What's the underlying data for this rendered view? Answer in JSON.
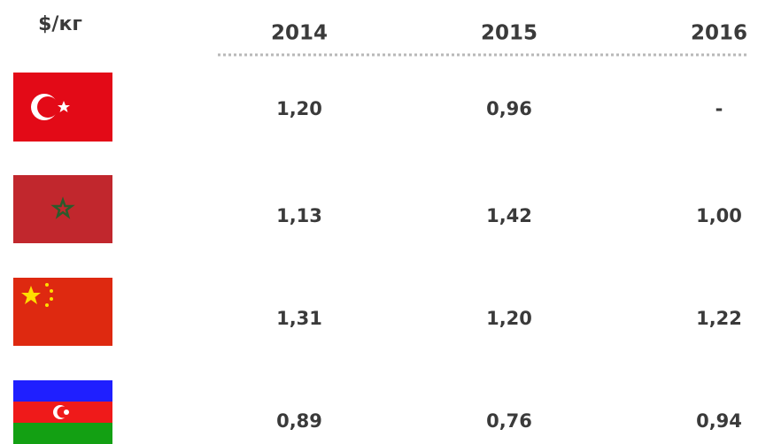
{
  "header": {
    "unit": "$/кг"
  },
  "table": {
    "columns": [
      "2014",
      "2015",
      "2016"
    ],
    "rows": [
      [
        "1,20",
        "0,96",
        "-"
      ],
      [
        "1,13",
        "1,42",
        "1,00"
      ],
      [
        "1,31",
        "1,20",
        "1,22"
      ],
      [
        "0,89",
        "0,76",
        "0,94"
      ]
    ]
  }
}
